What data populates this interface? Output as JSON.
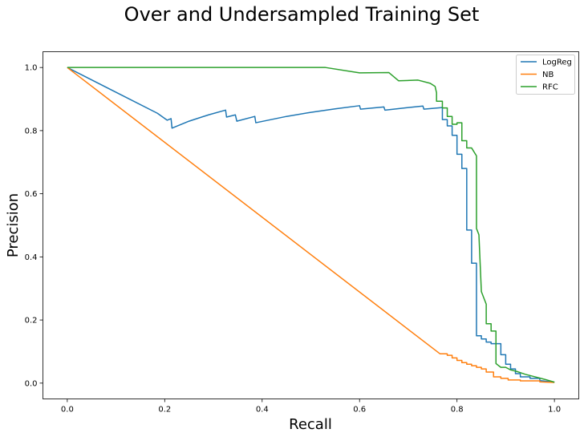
{
  "chart_data": {
    "type": "line",
    "title": "Over and Undersampled Training Set",
    "xlabel": "Recall",
    "ylabel": "Precision",
    "xlim": [
      -0.05,
      1.05
    ],
    "ylim": [
      -0.05,
      1.05
    ],
    "xticks": [
      0.0,
      0.2,
      0.4,
      0.6,
      0.8,
      1.0
    ],
    "xtick_labels": [
      "0.0",
      "0.2",
      "0.4",
      "0.6",
      "0.8",
      "1.0"
    ],
    "yticks": [
      0.0,
      0.2,
      0.4,
      0.6,
      0.8,
      1.0
    ],
    "ytick_labels": [
      "0.0",
      "0.2",
      "0.4",
      "0.6",
      "0.8",
      "1.0"
    ],
    "grid": false,
    "legend_position": "top-right",
    "series": [
      {
        "name": "LogReg",
        "color": "#1f77b4",
        "points": [
          [
            0.0,
            1.0
          ],
          [
            0.185,
            0.855
          ],
          [
            0.205,
            0.833
          ],
          [
            0.213,
            0.838
          ],
          [
            0.215,
            0.808
          ],
          [
            0.25,
            0.83
          ],
          [
            0.29,
            0.85
          ],
          [
            0.325,
            0.865
          ],
          [
            0.327,
            0.843
          ],
          [
            0.345,
            0.85
          ],
          [
            0.348,
            0.83
          ],
          [
            0.385,
            0.845
          ],
          [
            0.387,
            0.825
          ],
          [
            0.45,
            0.845
          ],
          [
            0.5,
            0.858
          ],
          [
            0.55,
            0.869
          ],
          [
            0.6,
            0.879
          ],
          [
            0.602,
            0.868
          ],
          [
            0.65,
            0.875
          ],
          [
            0.652,
            0.865
          ],
          [
            0.7,
            0.873
          ],
          [
            0.73,
            0.878
          ],
          [
            0.732,
            0.868
          ],
          [
            0.77,
            0.873
          ],
          [
            0.77,
            0.835
          ],
          [
            0.78,
            0.835
          ],
          [
            0.78,
            0.815
          ],
          [
            0.79,
            0.815
          ],
          [
            0.79,
            0.785
          ],
          [
            0.8,
            0.785
          ],
          [
            0.8,
            0.725
          ],
          [
            0.81,
            0.725
          ],
          [
            0.81,
            0.68
          ],
          [
            0.82,
            0.68
          ],
          [
            0.82,
            0.485
          ],
          [
            0.83,
            0.485
          ],
          [
            0.83,
            0.38
          ],
          [
            0.84,
            0.38
          ],
          [
            0.84,
            0.15
          ],
          [
            0.85,
            0.15
          ],
          [
            0.85,
            0.14
          ],
          [
            0.86,
            0.14
          ],
          [
            0.86,
            0.13
          ],
          [
            0.87,
            0.13
          ],
          [
            0.87,
            0.125
          ],
          [
            0.89,
            0.125
          ],
          [
            0.89,
            0.09
          ],
          [
            0.9,
            0.09
          ],
          [
            0.9,
            0.06
          ],
          [
            0.91,
            0.06
          ],
          [
            0.91,
            0.045
          ],
          [
            0.92,
            0.045
          ],
          [
            0.92,
            0.03
          ],
          [
            0.93,
            0.03
          ],
          [
            0.93,
            0.02
          ],
          [
            0.95,
            0.02
          ],
          [
            0.95,
            0.015
          ],
          [
            0.97,
            0.015
          ],
          [
            0.97,
            0.008
          ],
          [
            1.0,
            0.003
          ]
        ]
      },
      {
        "name": "NB",
        "color": "#ff7f0e",
        "points": [
          [
            0.0,
            1.0
          ],
          [
            0.765,
            0.093
          ],
          [
            0.78,
            0.093
          ],
          [
            0.78,
            0.088
          ],
          [
            0.79,
            0.088
          ],
          [
            0.79,
            0.08
          ],
          [
            0.8,
            0.08
          ],
          [
            0.8,
            0.072
          ],
          [
            0.81,
            0.072
          ],
          [
            0.81,
            0.065
          ],
          [
            0.82,
            0.065
          ],
          [
            0.82,
            0.06
          ],
          [
            0.83,
            0.06
          ],
          [
            0.83,
            0.055
          ],
          [
            0.84,
            0.055
          ],
          [
            0.84,
            0.05
          ],
          [
            0.85,
            0.05
          ],
          [
            0.85,
            0.045
          ],
          [
            0.86,
            0.045
          ],
          [
            0.86,
            0.035
          ],
          [
            0.875,
            0.035
          ],
          [
            0.875,
            0.02
          ],
          [
            0.89,
            0.02
          ],
          [
            0.89,
            0.015
          ],
          [
            0.905,
            0.015
          ],
          [
            0.905,
            0.01
          ],
          [
            0.93,
            0.01
          ],
          [
            0.93,
            0.007
          ],
          [
            0.97,
            0.007
          ],
          [
            0.97,
            0.004
          ],
          [
            1.0,
            0.002
          ]
        ]
      },
      {
        "name": "RFC",
        "color": "#2ca02c",
        "points": [
          [
            0.0,
            1.0
          ],
          [
            0.53,
            1.0
          ],
          [
            0.6,
            0.983
          ],
          [
            0.66,
            0.984
          ],
          [
            0.68,
            0.958
          ],
          [
            0.72,
            0.96
          ],
          [
            0.745,
            0.95
          ],
          [
            0.755,
            0.94
          ],
          [
            0.758,
            0.92
          ],
          [
            0.758,
            0.893
          ],
          [
            0.77,
            0.893
          ],
          [
            0.77,
            0.872
          ],
          [
            0.78,
            0.872
          ],
          [
            0.78,
            0.845
          ],
          [
            0.79,
            0.845
          ],
          [
            0.79,
            0.82
          ],
          [
            0.8,
            0.82
          ],
          [
            0.8,
            0.825
          ],
          [
            0.81,
            0.825
          ],
          [
            0.81,
            0.768
          ],
          [
            0.82,
            0.768
          ],
          [
            0.82,
            0.745
          ],
          [
            0.83,
            0.745
          ],
          [
            0.84,
            0.72
          ],
          [
            0.84,
            0.49
          ],
          [
            0.845,
            0.47
          ],
          [
            0.85,
            0.29
          ],
          [
            0.855,
            0.27
          ],
          [
            0.86,
            0.25
          ],
          [
            0.86,
            0.188
          ],
          [
            0.87,
            0.188
          ],
          [
            0.87,
            0.165
          ],
          [
            0.88,
            0.165
          ],
          [
            0.88,
            0.062
          ],
          [
            0.89,
            0.05
          ],
          [
            0.9,
            0.05
          ],
          [
            0.91,
            0.042
          ],
          [
            0.925,
            0.036
          ],
          [
            0.94,
            0.028
          ],
          [
            0.96,
            0.02
          ],
          [
            0.98,
            0.012
          ],
          [
            1.0,
            0.003
          ]
        ]
      }
    ]
  }
}
